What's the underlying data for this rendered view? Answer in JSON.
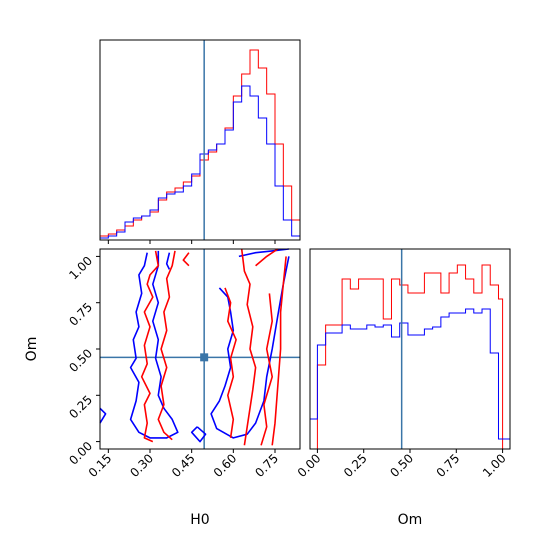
{
  "chart_data": [
    {
      "type": "histogram",
      "panel": "H0 marginal",
      "xlim": [
        0.12,
        0.84
      ],
      "truth": 0.495,
      "bin_width": 0.03,
      "series": [
        {
          "color": "#ff0000",
          "x": [
            0.12,
            0.15,
            0.18,
            0.21,
            0.24,
            0.27,
            0.3,
            0.33,
            0.36,
            0.39,
            0.42,
            0.45,
            0.48,
            0.51,
            0.54,
            0.57,
            0.6,
            0.63,
            0.66,
            0.69,
            0.72,
            0.75,
            0.78,
            0.81
          ],
          "values": [
            0.02,
            0.03,
            0.05,
            0.07,
            0.1,
            0.12,
            0.14,
            0.2,
            0.24,
            0.26,
            0.29,
            0.32,
            0.4,
            0.44,
            0.48,
            0.56,
            0.72,
            0.83,
            0.95,
            0.86,
            0.73,
            0.48,
            0.27,
            0.1
          ]
        },
        {
          "color": "#0000ff",
          "x": [
            0.12,
            0.15,
            0.18,
            0.21,
            0.24,
            0.27,
            0.3,
            0.33,
            0.36,
            0.39,
            0.42,
            0.45,
            0.48,
            0.51,
            0.54,
            0.57,
            0.6,
            0.63,
            0.66,
            0.69,
            0.72,
            0.75,
            0.78,
            0.81
          ],
          "values": [
            0.01,
            0.02,
            0.04,
            0.09,
            0.11,
            0.12,
            0.15,
            0.21,
            0.23,
            0.24,
            0.27,
            0.33,
            0.43,
            0.45,
            0.48,
            0.55,
            0.69,
            0.77,
            0.72,
            0.61,
            0.48,
            0.27,
            0.1,
            0.02
          ]
        }
      ]
    },
    {
      "type": "histogram",
      "panel": "Om marginal",
      "xlabel": "Om",
      "xlim": [
        -0.04,
        1.04
      ],
      "truth": 0.455,
      "xticks": [
        "0.00",
        "0.25",
        "0.50",
        "0.75",
        "1.00"
      ],
      "x": [
        -0.04,
        0.0,
        0.0444,
        0.0889,
        0.1333,
        0.1778,
        0.2222,
        0.2667,
        0.3111,
        0.3556,
        0.4,
        0.4444,
        0.4889,
        0.5333,
        0.5778,
        0.6222,
        0.6667,
        0.7111,
        0.7556,
        0.8,
        0.8444,
        0.8889,
        0.9333,
        0.9778,
        1.0
      ],
      "series": [
        {
          "color": "#ff0000",
          "values": [
            0.0,
            0.42,
            0.62,
            0.62,
            0.85,
            0.8,
            0.85,
            0.85,
            0.85,
            0.65,
            0.85,
            0.82,
            0.78,
            0.78,
            0.88,
            0.88,
            0.78,
            0.88,
            0.92,
            0.85,
            0.78,
            0.92,
            0.82,
            0.75,
            0.0
          ]
        },
        {
          "color": "#0000ff",
          "values": [
            0.15,
            0.52,
            0.58,
            0.58,
            0.62,
            0.6,
            0.6,
            0.62,
            0.61,
            0.62,
            0.56,
            0.63,
            0.57,
            0.57,
            0.6,
            0.61,
            0.66,
            0.68,
            0.68,
            0.7,
            0.68,
            0.7,
            0.48,
            0.05,
            0.05
          ]
        }
      ]
    },
    {
      "type": "contour",
      "panel": "H0 vs Om",
      "xlabel": "H0",
      "ylabel": "Om",
      "xlim": [
        0.12,
        0.84
      ],
      "ylim": [
        -0.04,
        1.04
      ],
      "xticks": [
        "0.15",
        "0.30",
        "0.45",
        "0.60",
        "0.75"
      ],
      "yticks": [
        "0.00",
        "0.25",
        "0.50",
        "0.75",
        "1.00"
      ],
      "truth": {
        "H0": 0.495,
        "Om": 0.455
      },
      "series": [
        {
          "color": "#0000ff",
          "paths": [
            [
              [
                0.29,
                1.02
              ],
              [
                0.28,
                0.95
              ],
              [
                0.26,
                0.9
              ],
              [
                0.27,
                0.8
              ],
              [
                0.25,
                0.7
              ],
              [
                0.26,
                0.62
              ],
              [
                0.24,
                0.55
              ],
              [
                0.25,
                0.45
              ],
              [
                0.23,
                0.4
              ],
              [
                0.26,
                0.32
              ],
              [
                0.25,
                0.22
              ],
              [
                0.23,
                0.12
              ],
              [
                0.26,
                0.05
              ],
              [
                0.3,
                0.02
              ],
              [
                0.36,
                0.02
              ],
              [
                0.4,
                0.05
              ],
              [
                0.38,
                0.12
              ],
              [
                0.35,
                0.18
              ],
              [
                0.33,
                0.25
              ],
              [
                0.34,
                0.35
              ],
              [
                0.32,
                0.45
              ],
              [
                0.33,
                0.55
              ],
              [
                0.31,
                0.65
              ],
              [
                0.33,
                0.75
              ],
              [
                0.31,
                0.85
              ],
              [
                0.33,
                0.95
              ],
              [
                0.33,
                1.03
              ]
            ],
            [
              [
                0.37,
                1.02
              ],
              [
                0.36,
                0.96
              ],
              [
                0.37,
                0.93
              ]
            ],
            [
              [
                0.12,
                0.18
              ],
              [
                0.14,
                0.15
              ],
              [
                0.12,
                0.1
              ]
            ],
            [
              [
                0.62,
                1.0
              ],
              [
                0.68,
                1.02
              ],
              [
                0.74,
                1.03
              ],
              [
                0.8,
                1.04
              ]
            ],
            [
              [
                0.55,
                0.83
              ],
              [
                0.58,
                0.78
              ],
              [
                0.59,
                0.7
              ],
              [
                0.6,
                0.6
              ],
              [
                0.58,
                0.5
              ],
              [
                0.59,
                0.4
              ],
              [
                0.57,
                0.3
              ],
              [
                0.55,
                0.22
              ],
              [
                0.52,
                0.15
              ],
              [
                0.54,
                0.07
              ],
              [
                0.6,
                0.02
              ],
              [
                0.65,
                0.04
              ],
              [
                0.68,
                0.1
              ],
              [
                0.71,
                0.22
              ],
              [
                0.72,
                0.35
              ],
              [
                0.74,
                0.5
              ],
              [
                0.76,
                0.68
              ],
              [
                0.78,
                0.85
              ],
              [
                0.8,
                1.0
              ]
            ],
            [
              [
                0.47,
                0.08
              ],
              [
                0.5,
                0.04
              ],
              [
                0.48,
                0.0
              ],
              [
                0.45,
                0.05
              ],
              [
                0.47,
                0.08
              ]
            ]
          ]
        },
        {
          "color": "#ff0000",
          "paths": [
            [
              [
                0.32,
                1.03
              ],
              [
                0.33,
                0.95
              ],
              [
                0.3,
                0.9
              ],
              [
                0.29,
                0.85
              ],
              [
                0.31,
                0.78
              ],
              [
                0.28,
                0.7
              ],
              [
                0.3,
                0.62
              ],
              [
                0.28,
                0.52
              ],
              [
                0.29,
                0.42
              ],
              [
                0.27,
                0.35
              ],
              [
                0.3,
                0.26
              ],
              [
                0.28,
                0.2
              ],
              [
                0.29,
                0.1
              ],
              [
                0.28,
                0.02
              ],
              [
                0.31,
                0.0
              ]
            ],
            [
              [
                0.39,
                1.03
              ],
              [
                0.38,
                0.95
              ],
              [
                0.36,
                0.88
              ],
              [
                0.37,
                0.78
              ],
              [
                0.35,
                0.7
              ],
              [
                0.36,
                0.6
              ],
              [
                0.34,
                0.5
              ],
              [
                0.36,
                0.4
              ],
              [
                0.34,
                0.3
              ],
              [
                0.35,
                0.2
              ],
              [
                0.33,
                0.12
              ],
              [
                0.35,
                0.05
              ],
              [
                0.38,
                0.01
              ]
            ],
            [
              [
                0.44,
                1.02
              ],
              [
                0.42,
                0.98
              ],
              [
                0.44,
                0.95
              ]
            ],
            [
              [
                0.57,
                0.83
              ],
              [
                0.59,
                0.75
              ],
              [
                0.58,
                0.65
              ],
              [
                0.61,
                0.55
              ],
              [
                0.59,
                0.45
              ],
              [
                0.6,
                0.35
              ],
              [
                0.58,
                0.25
              ],
              [
                0.6,
                0.12
              ],
              [
                0.59,
                0.02
              ]
            ],
            [
              [
                0.63,
                1.04
              ],
              [
                0.64,
                0.92
              ],
              [
                0.66,
                0.85
              ],
              [
                0.65,
                0.74
              ],
              [
                0.67,
                0.62
              ],
              [
                0.66,
                0.5
              ],
              [
                0.68,
                0.4
              ],
              [
                0.67,
                0.28
              ],
              [
                0.66,
                0.18
              ],
              [
                0.65,
                0.08
              ],
              [
                0.64,
                -0.02
              ]
            ],
            [
              [
                0.68,
                0.95
              ],
              [
                0.72,
                1.0
              ],
              [
                0.76,
                1.04
              ]
            ],
            [
              [
                0.73,
                0.8
              ],
              [
                0.74,
                0.65
              ],
              [
                0.72,
                0.5
              ],
              [
                0.74,
                0.35
              ],
              [
                0.71,
                0.2
              ],
              [
                0.72,
                0.08
              ],
              [
                0.7,
                -0.02
              ]
            ],
            [
              [
                0.79,
                1.0
              ],
              [
                0.78,
                0.85
              ],
              [
                0.77,
                0.7
              ],
              [
                0.77,
                0.5
              ],
              [
                0.76,
                0.3
              ],
              [
                0.75,
                0.1
              ],
              [
                0.74,
                -0.02
              ]
            ]
          ]
        }
      ]
    }
  ]
}
